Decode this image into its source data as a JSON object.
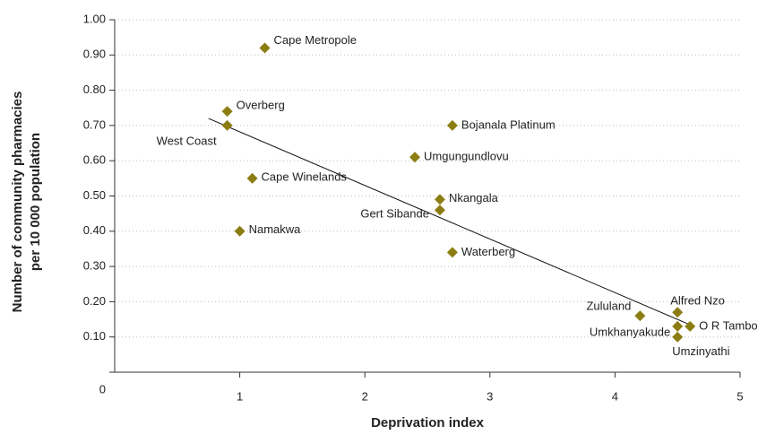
{
  "chart_data": {
    "type": "scatter",
    "x_label": "Deprivation index",
    "y_label": [
      "Number of community pharmacies",
      "per 10 000  population"
    ],
    "labels": [
      "Cape Metropole",
      "Overberg",
      "West Coast",
      "Cape Winelands",
      "Namakwa",
      "Bojanala Platinum",
      "Umgungundlovu",
      "Nkangala",
      "Gert Sibande",
      "Waterberg",
      "Zululand",
      "Alfred Nzo",
      "O R Tambo",
      "Umkhanyakude",
      "Umzinyathi"
    ],
    "x": [
      1.2,
      0.9,
      0.9,
      1.1,
      1.0,
      2.7,
      2.4,
      2.6,
      2.6,
      2.7,
      4.2,
      4.5,
      4.6,
      4.5,
      4.5
    ],
    "values": [
      0.92,
      0.74,
      0.7,
      0.55,
      0.4,
      0.7,
      0.61,
      0.49,
      0.46,
      0.34,
      0.16,
      0.17,
      0.13,
      0.13,
      0.1
    ],
    "color": "#8b7d12",
    "trend_line": {
      "x": [
        0.75,
        4.63
      ],
      "y": [
        0.72,
        0.13
      ]
    },
    "xlim": [
      0,
      5
    ],
    "xticks": [
      1,
      2,
      3,
      4,
      5
    ],
    "ylim": [
      0,
      1
    ],
    "yticks": [
      0,
      {
        "value": 0.1,
        "label": "0.10"
      },
      {
        "value": 0.2,
        "label": "0.20"
      },
      {
        "value": 0.3,
        "label": "0.30"
      },
      {
        "value": 0.4,
        "label": "0.40"
      },
      {
        "value": 0.5,
        "label": "0.50"
      },
      {
        "value": 0.6,
        "label": "0.60"
      },
      {
        "value": 0.7,
        "label": "0.70"
      },
      {
        "value": 0.8,
        "label": "0.80"
      },
      {
        "value": 0.9,
        "label": "0.90"
      },
      {
        "value": 1.0,
        "label": "1.00"
      }
    ],
    "grid": true
  }
}
